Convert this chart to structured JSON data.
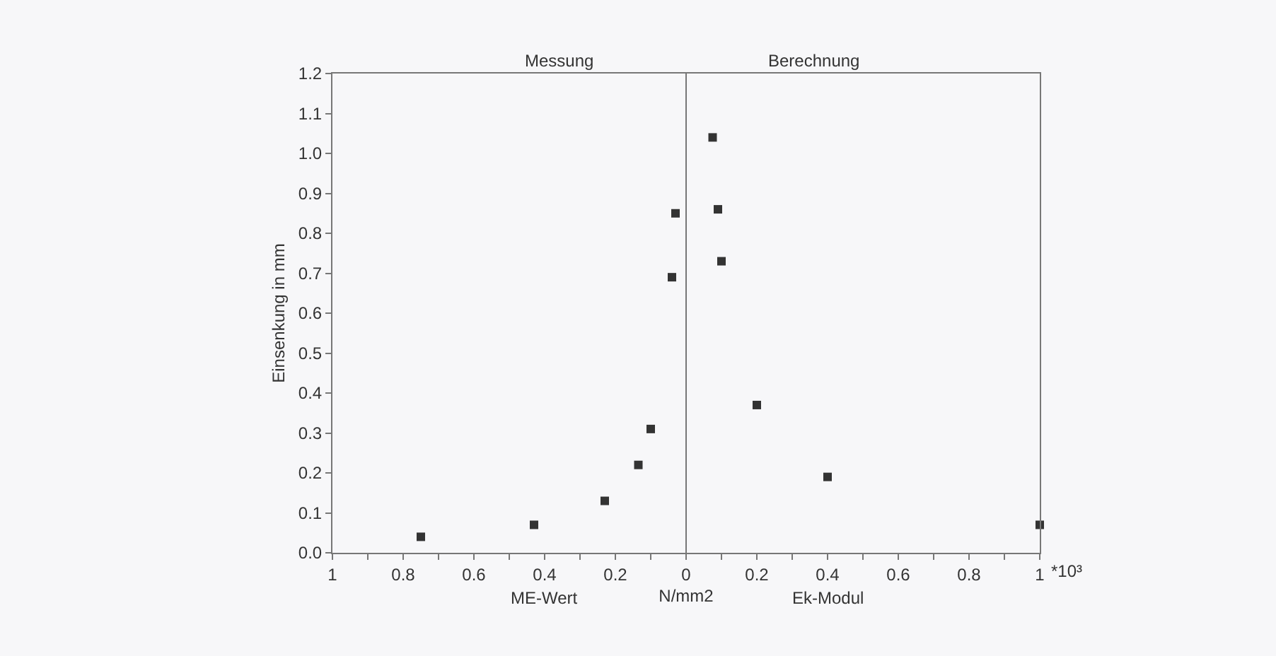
{
  "chart_data": {
    "type": "scatter",
    "xlabel": "N/mm2",
    "ylabel": "Einsenkung in mm",
    "annotations": [
      "Messung",
      "Berechnung",
      "ME-Wert",
      "Ek-Modul",
      "*10³"
    ],
    "x": [
      -0.75,
      -0.43,
      -0.23,
      -0.135,
      -0.1,
      -0.04,
      -0.03,
      0.075,
      0.09,
      0.1,
      0.2,
      0.4,
      1.0
    ],
    "series": [
      {
        "color": "#333333",
        "values": [
          0.04,
          0.07,
          0.13,
          0.22,
          0.31,
          0.69,
          0.85,
          1.04,
          0.86,
          0.73,
          0.37,
          0.19,
          0.07
        ]
      }
    ],
    "marker": "square",
    "grid": false,
    "xlim": [
      -1,
      1
    ],
    "ylim": [
      0,
      1.2
    ],
    "xticks": [
      {
        "value": -1,
        "label": "1"
      },
      {
        "value": -0.9,
        "label": null
      },
      {
        "value": -0.8,
        "label": "0.8"
      },
      {
        "value": -0.7,
        "label": null
      },
      {
        "value": -0.6,
        "label": "0.6"
      },
      {
        "value": -0.5,
        "label": null
      },
      {
        "value": -0.4,
        "label": "0.4"
      },
      {
        "value": -0.3,
        "label": null
      },
      {
        "value": -0.2,
        "label": "0.2"
      },
      {
        "value": -0.1,
        "label": null
      },
      {
        "value": 0,
        "label": "0"
      },
      {
        "value": 0.1,
        "label": null
      },
      {
        "value": 0.2,
        "label": "0.2"
      },
      {
        "value": 0.3,
        "label": null
      },
      {
        "value": 0.4,
        "label": "0.4"
      },
      {
        "value": 0.5,
        "label": null
      },
      {
        "value": 0.6,
        "label": "0.6"
      },
      {
        "value": 0.7,
        "label": null
      },
      {
        "value": 0.8,
        "label": "0.8"
      },
      {
        "value": 0.9,
        "label": null
      },
      {
        "value": 1,
        "label": "1"
      }
    ],
    "yticks": [
      {
        "value": 0,
        "label": "0.0"
      },
      {
        "value": 0.1,
        "label": "0.1"
      },
      {
        "value": 0.2,
        "label": "0.2"
      },
      {
        "value": 0.3,
        "label": "0.3"
      },
      {
        "value": 0.4,
        "label": "0.4"
      },
      {
        "value": 0.5,
        "label": "0.5"
      },
      {
        "value": 0.6,
        "label": "0.6"
      },
      {
        "value": 0.7,
        "label": "0.7"
      },
      {
        "value": 0.8,
        "label": "0.8"
      },
      {
        "value": 0.9,
        "label": "0.9"
      },
      {
        "value": 1.0,
        "label": "1.0"
      },
      {
        "value": 1.1,
        "label": "1.1"
      },
      {
        "value": 1.2,
        "label": "1.2"
      }
    ],
    "ref_lines": [
      {
        "axis": "x",
        "value": 0,
        "color": "#777777"
      }
    ]
  }
}
